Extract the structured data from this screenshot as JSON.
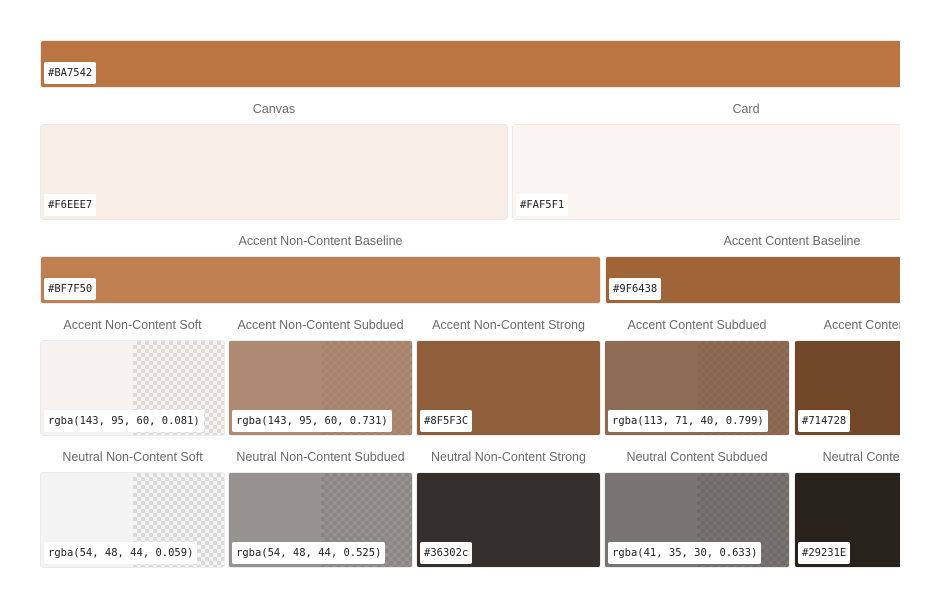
{
  "rows": {
    "r0": {
      "s0": {
        "hex": "#BA7542",
        "color": "#BA7542"
      }
    },
    "r1": {
      "s0": {
        "label": "Canvas",
        "hex": "#F6EEE7",
        "color": "#F6EEE7"
      },
      "s1": {
        "label": "Card",
        "hex": "#FAF5F1",
        "color": "#FAF5F1"
      }
    },
    "r2": {
      "s0": {
        "label": "Accent Non-Content Baseline",
        "hex": "#BF7F50",
        "color": "#BF7F50"
      },
      "s1": {
        "label": "Accent Content Baseline",
        "hex": "#9F6438",
        "color": "#9F6438"
      }
    },
    "r3": {
      "s0": {
        "label": "Accent Non-Content Soft",
        "hex": "rgba(143, 95, 60, 0.081)",
        "color": "rgba(143, 95, 60, 0.081)"
      },
      "s1": {
        "label": "Accent Non-Content Subdued",
        "hex": "rgba(143, 95, 60, 0.731)",
        "color": "rgba(143, 95, 60, 0.731)"
      },
      "s2": {
        "label": "Accent Non-Content Strong",
        "hex": "#8F5F3C",
        "color": "#8F5F3C"
      },
      "s3": {
        "label": "Accent Content Subdued",
        "hex": "rgba(113, 71, 40, 0.799)",
        "color": "rgba(113, 71, 40, 0.799)"
      },
      "s4": {
        "label": "Accent Content Strong",
        "hex": "#714728",
        "color": "#714728"
      }
    },
    "r4": {
      "s0": {
        "label": "Neutral Non-Content Soft",
        "hex": "rgba(54, 48, 44, 0.059)",
        "color": "rgba(54, 48, 44, 0.059)"
      },
      "s1": {
        "label": "Neutral Non-Content Subdued",
        "hex": "rgba(54, 48, 44, 0.525)",
        "color": "rgba(54, 48, 44, 0.525)"
      },
      "s2": {
        "label": "Neutral Non-Content Strong",
        "hex": "#36302c",
        "color": "#36302c"
      },
      "s3": {
        "label": "Neutral Content Subdued",
        "hex": "rgba(41, 35, 30, 0.633)",
        "color": "rgba(41, 35, 30, 0.633)"
      },
      "s4": {
        "label": "Neutral Content Strong",
        "hex": "#29231E",
        "color": "#29231E"
      }
    }
  }
}
